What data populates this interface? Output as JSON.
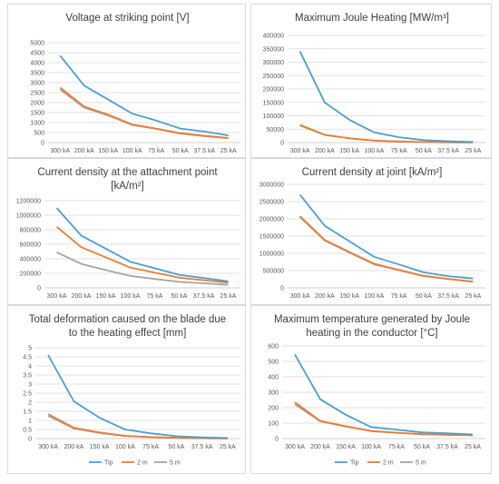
{
  "colors": {
    "tip": "#4a9fd5",
    "m2": "#ed7d31",
    "m5": "#a5a5a5",
    "grid": "#d9d9d9",
    "axis": "#bfbfbf"
  },
  "chart_data": [
    {
      "type": "line",
      "title": "Voltage at striking point [V]",
      "categories": [
        "300 kA",
        "200 kA",
        "150 kA",
        "100 kA",
        "75 kA",
        "50 kA",
        "37.5 kA",
        "25 kA"
      ],
      "yticks": [
        "0",
        "500",
        "1000",
        "1500",
        "2000",
        "2500",
        "3000",
        "3500",
        "4000",
        "4500",
        "5000"
      ],
      "ylim": [
        0,
        5000
      ],
      "legend": false,
      "series": [
        {
          "values": [
            4350,
            2850,
            2150,
            1450,
            1100,
            700,
            550,
            360
          ]
        },
        {
          "values": [
            2750,
            1800,
            1400,
            900,
            700,
            470,
            340,
            230
          ]
        },
        {
          "values": [
            2650,
            1750,
            1350,
            880,
            680,
            450,
            320,
            220
          ]
        }
      ]
    },
    {
      "type": "line",
      "title": "Maximum Joule Heating [MW/m³]",
      "categories": [
        "300 kA",
        "200 kA",
        "150 kA",
        "100 kA",
        "75 kA",
        "50 kA",
        "37.5 kA",
        "25 kA"
      ],
      "yticks": [
        "0",
        "50000",
        "100000",
        "150000",
        "200000",
        "250000",
        "300000",
        "350000",
        "400000"
      ],
      "ylim": [
        0,
        400000
      ],
      "legend": false,
      "series": [
        {
          "values": [
            340000,
            150000,
            85000,
            38000,
            20000,
            9000,
            5000,
            2000
          ]
        },
        {
          "values": [
            66000,
            29000,
            16000,
            7000,
            4000,
            1700,
            1000,
            400
          ]
        },
        {
          "values": [
            64000,
            28000,
            16000,
            7000,
            4000,
            1700,
            1000,
            400
          ]
        }
      ]
    },
    {
      "type": "line",
      "title": "Current density at the attachment point",
      "title2": "[kA/m²]",
      "categories": [
        "300 kA",
        "200 kA",
        "150 kA",
        "100 kA",
        "75 kA",
        "50 kA",
        "37.5 kA",
        "25 kA"
      ],
      "yticks": [
        "0",
        "200000",
        "400000",
        "600000",
        "800000",
        "1000000",
        "1200000"
      ],
      "ylim": [
        0,
        1200000
      ],
      "legend": false,
      "series": [
        {
          "values": [
            1100000,
            720000,
            540000,
            360000,
            270000,
            180000,
            135000,
            90000
          ]
        },
        {
          "values": [
            840000,
            560000,
            420000,
            280000,
            210000,
            140000,
            105000,
            70000
          ]
        },
        {
          "values": [
            490000,
            330000,
            245000,
            165000,
            123000,
            82000,
            62000,
            41000
          ]
        }
      ]
    },
    {
      "type": "line",
      "title": "Current density at joint [kA/m²]",
      "categories": [
        "300 kA",
        "200 kA",
        "150 kA",
        "100 kA",
        "75 kA",
        "50 kA",
        "37.5 kA",
        "25 kA"
      ],
      "yticks": [
        "0",
        "500000",
        "1000000",
        "1500000",
        "2000000",
        "2500000",
        "3000000"
      ],
      "ylim": [
        0,
        3000000
      ],
      "legend": false,
      "series": [
        {
          "values": [
            2700000,
            1800000,
            1350000,
            900000,
            680000,
            450000,
            340000,
            270000
          ]
        },
        {
          "values": [
            2080000,
            1390000,
            1040000,
            700000,
            520000,
            350000,
            260000,
            180000
          ]
        },
        {
          "values": [
            2050000,
            1370000,
            1020000,
            680000,
            510000,
            340000,
            255000,
            175000
          ]
        }
      ]
    },
    {
      "type": "line",
      "title": "Total deformation caused on the blade due",
      "title2": "to the heating effect [mm]",
      "categories": [
        "300 kA",
        "200 kA",
        "150 kA",
        "100 kA",
        "75 kA",
        "50 kA",
        "37.5 kA",
        "25 kA"
      ],
      "yticks": [
        "0",
        "0.5",
        "1",
        "1.5",
        "2",
        "2.5",
        "3",
        "3.5",
        "4",
        "4.5",
        "5"
      ],
      "ylim": [
        0,
        5
      ],
      "legend": true,
      "series": [
        {
          "name": "Tip",
          "values": [
            4.6,
            2.05,
            1.15,
            0.5,
            0.29,
            0.13,
            0.07,
            0.03
          ]
        },
        {
          "name": "2 m",
          "values": [
            1.35,
            0.6,
            0.34,
            0.15,
            0.08,
            0.04,
            0.02,
            0.01
          ]
        },
        {
          "name": "5 m",
          "values": [
            1.25,
            0.55,
            0.31,
            0.14,
            0.08,
            0.04,
            0.02,
            0.01
          ]
        }
      ]
    },
    {
      "type": "line",
      "title": "Maximum temperature generated by Joule",
      "title2": "heating in the conductor [°C]",
      "categories": [
        "300 kA",
        "200 kA",
        "150 kA",
        "100 kA",
        "75 kA",
        "50 kA",
        "37.5 kA",
        "25 kA"
      ],
      "yticks": [
        "0",
        "100",
        "200",
        "300",
        "400",
        "500",
        "600"
      ],
      "ylim": [
        0,
        600
      ],
      "legend": true,
      "series": [
        {
          "name": "Tip",
          "values": [
            545,
            255,
            155,
            75,
            58,
            40,
            34,
            27
          ]
        },
        {
          "name": "2 m",
          "values": [
            235,
            115,
            80,
            50,
            38,
            28,
            25,
            22
          ]
        },
        {
          "name": "5 m",
          "values": [
            222,
            112,
            78,
            48,
            37,
            28,
            25,
            22
          ]
        }
      ]
    }
  ]
}
